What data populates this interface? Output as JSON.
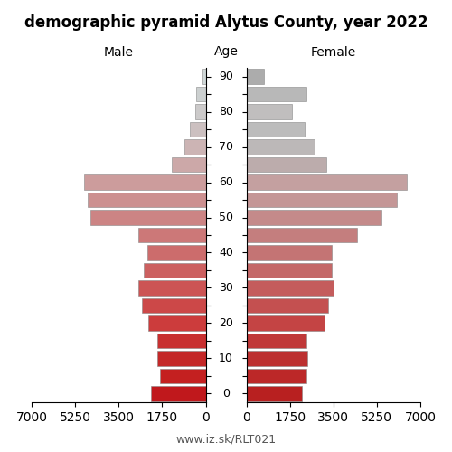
{
  "chart_data": {
    "type": "bar",
    "orientation": "horizontal",
    "title": "demographic pyramid Alytus County, year 2022",
    "y_label": "Age",
    "categories": [
      "0",
      null,
      "10",
      null,
      "20",
      null,
      "30",
      null,
      "40",
      null,
      "50",
      null,
      "60",
      null,
      "70",
      null,
      "80",
      null,
      "90"
    ],
    "series": [
      {
        "name": "Male",
        "values": [
          2200,
          1850,
          1950,
          1950,
          2300,
          2550,
          2700,
          2500,
          2350,
          2700,
          4650,
          4750,
          4900,
          1350,
          870,
          620,
          430,
          380,
          130
        ],
        "colors": [
          "#c0181c",
          "#c42020",
          "#c42828",
          "#c83030",
          "#cc3c3c",
          "#cc4848",
          "#cc5454",
          "#cc6060",
          "#cc6c6c",
          "#cc7878",
          "#cc8484",
          "#cc9090",
          "#cc9c9c",
          "#cca8a8",
          "#ccb4b4",
          "#ccc0c0",
          "#cccaca",
          "#ccd0d0",
          "#d0d8d8"
        ]
      },
      {
        "name": "Female",
        "values": [
          2250,
          2400,
          2450,
          2400,
          3150,
          3300,
          3500,
          3450,
          3450,
          4450,
          5450,
          6050,
          6450,
          3200,
          2750,
          2350,
          1850,
          2400,
          700
        ],
        "colors": [
          "#b82020",
          "#bc2828",
          "#bc3030",
          "#c03838",
          "#c44444",
          "#c45050",
          "#c45c5c",
          "#c46868",
          "#c47474",
          "#c47e7e",
          "#c48a8a",
          "#c49696",
          "#c4a0a0",
          "#bcacac",
          "#bcb8b8",
          "#bcbcbc",
          "#c0bebe",
          "#b8b8b8",
          "#acacac"
        ]
      }
    ],
    "xlim": [
      0,
      7000
    ],
    "xticks": [
      0,
      1750,
      3500,
      5250,
      7000
    ],
    "grid": false,
    "annotations": [
      {
        "text": "www.iz.sk/RLT021"
      }
    ]
  }
}
